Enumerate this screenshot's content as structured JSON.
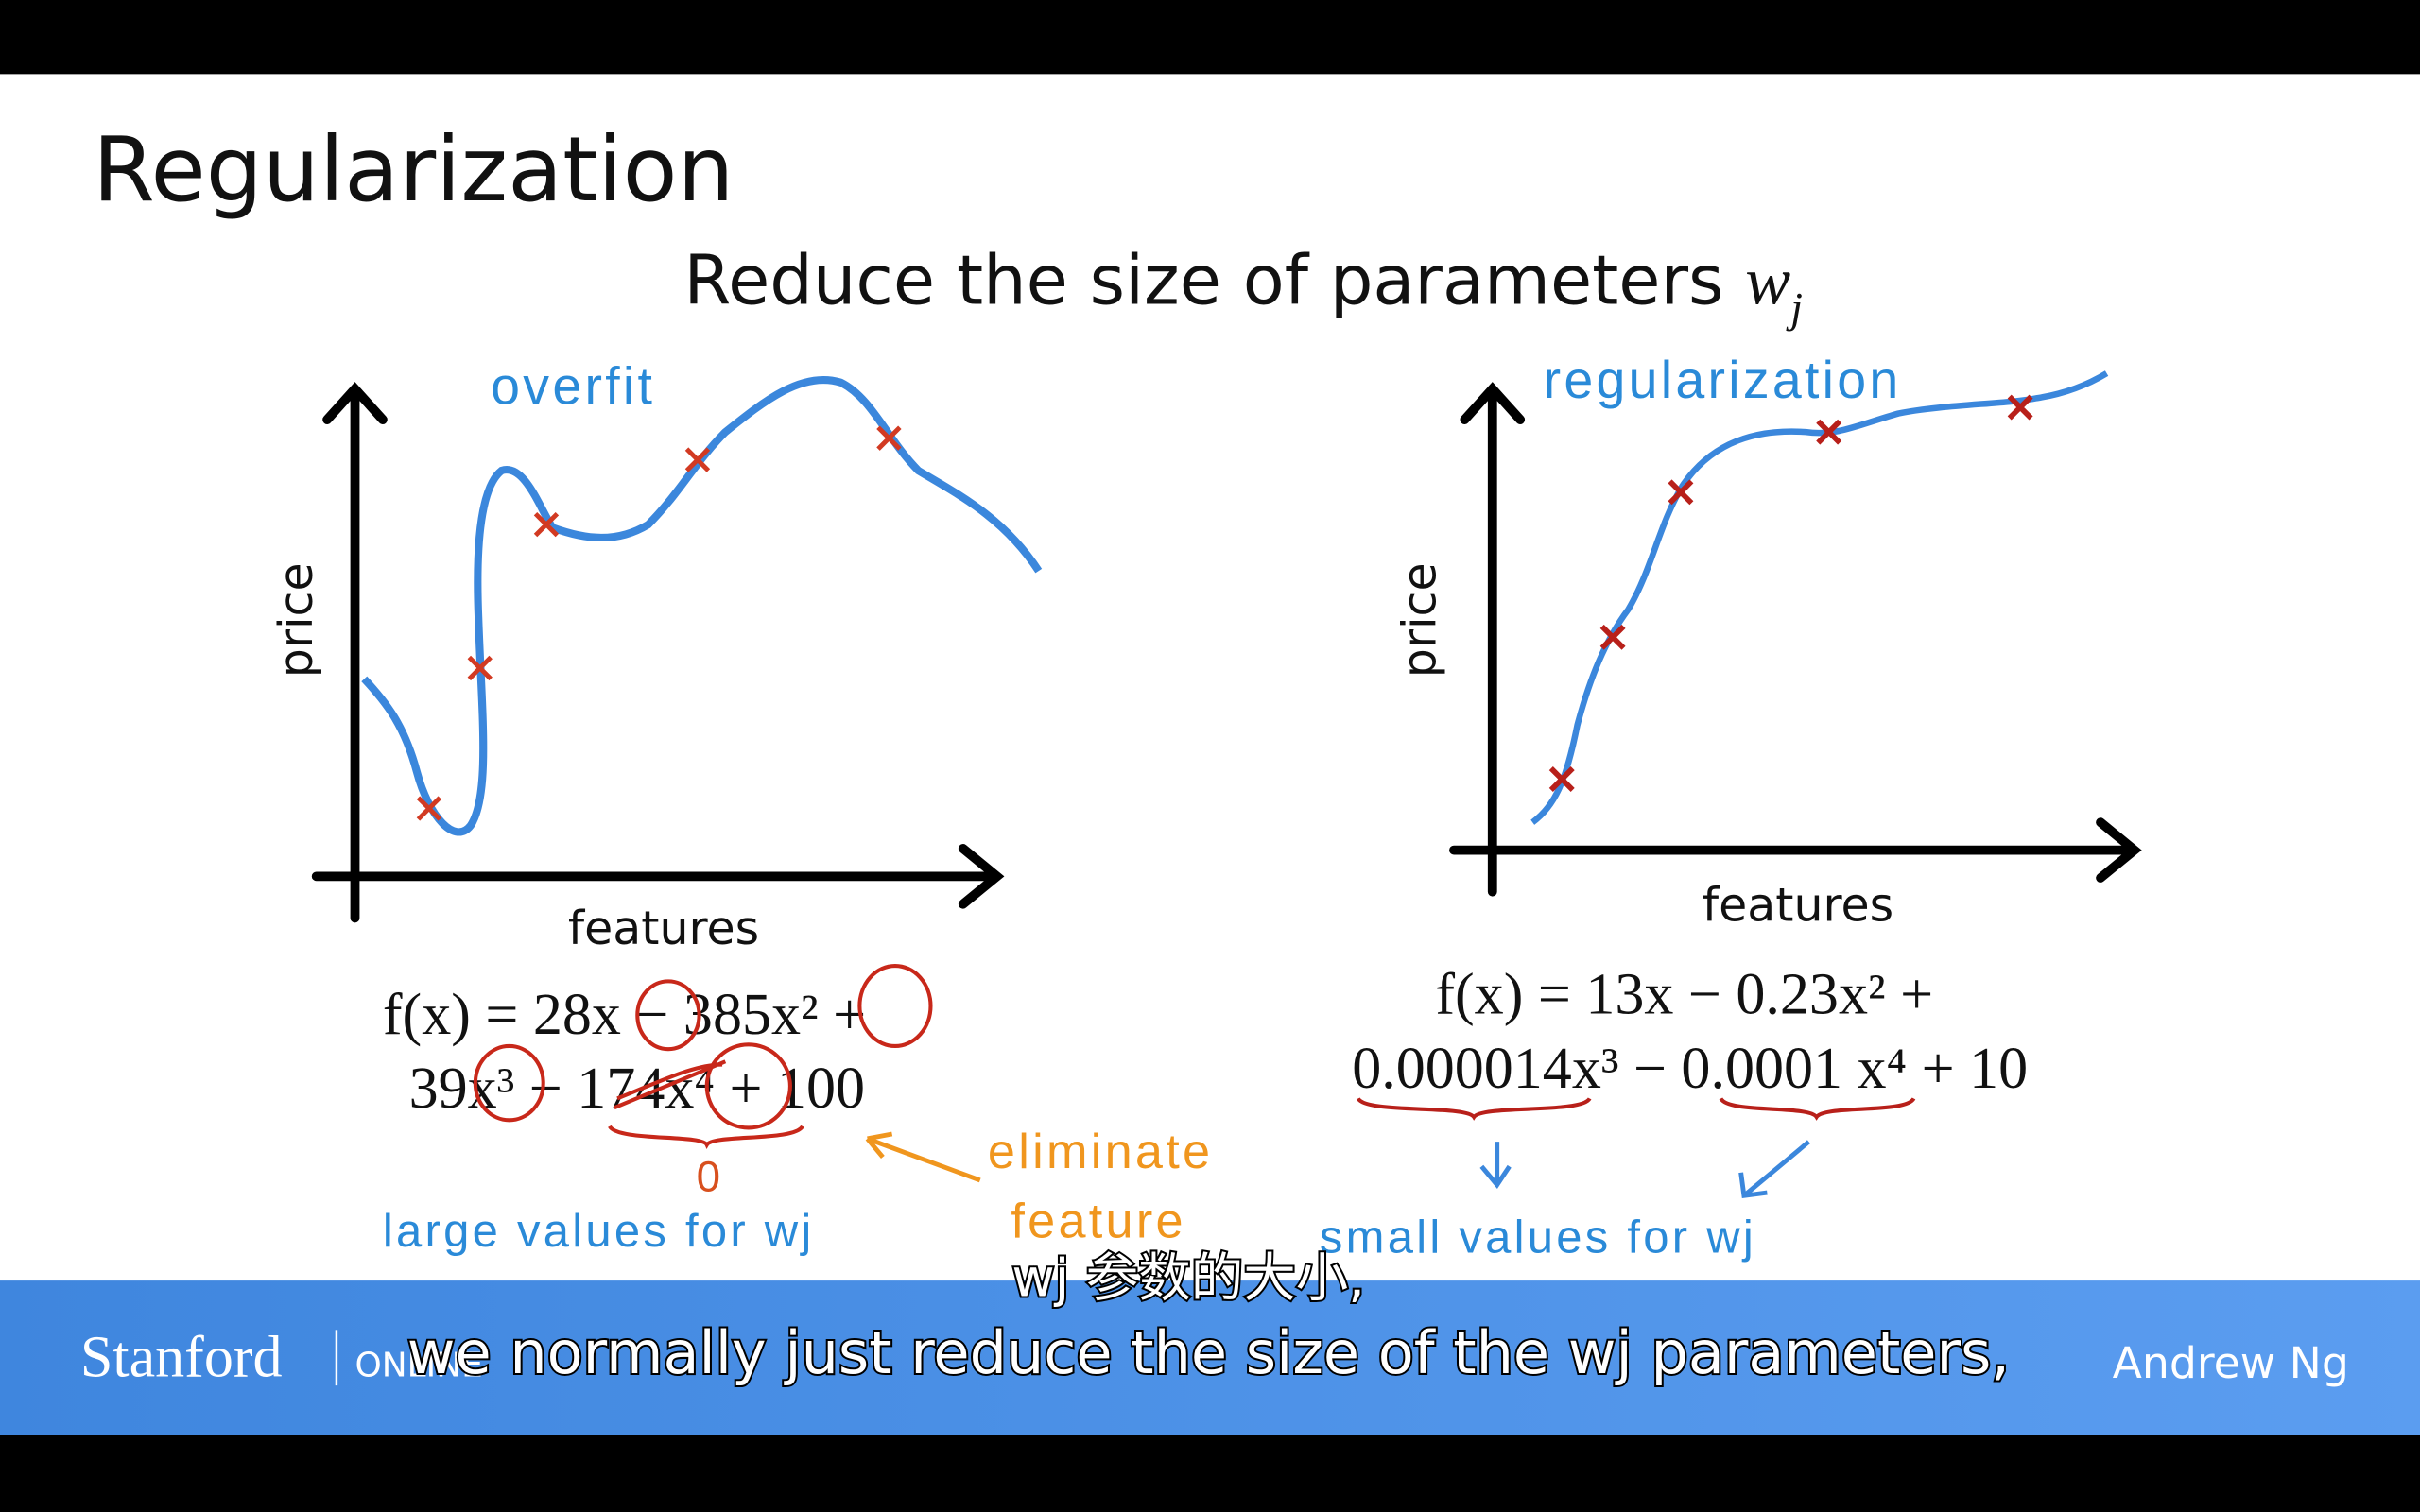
{
  "slide": {
    "title": "Regularization",
    "subtitle": {
      "text": "Reduce the size of parameters",
      "symbol": "w",
      "subscript": "j"
    },
    "left_plot": {
      "annotation": "overfit",
      "y_label": "price",
      "x_label": "features",
      "equation": [
        "f(x) = 28x − 385x² +",
        "39x³ − 174x⁴ + 100"
      ],
      "zero_note": "0",
      "eliminate_note": [
        "eliminate",
        "feature"
      ],
      "note": "large values for wj"
    },
    "right_plot": {
      "annotation": "regularization",
      "y_label": "price",
      "x_label": "features",
      "equation": [
        "f(x) = 13x − 0.23x² +",
        "0.000014x³ − 0.0001 x⁴ + 10"
      ],
      "note": "small values for wj"
    }
  },
  "footer": {
    "brand": "Stanford",
    "brand_sub": "ONLINE",
    "instructor": "Andrew Ng"
  },
  "captions": [
    "wj 参数的大小,",
    "we normally just reduce the size of the wj parameters,"
  ]
}
